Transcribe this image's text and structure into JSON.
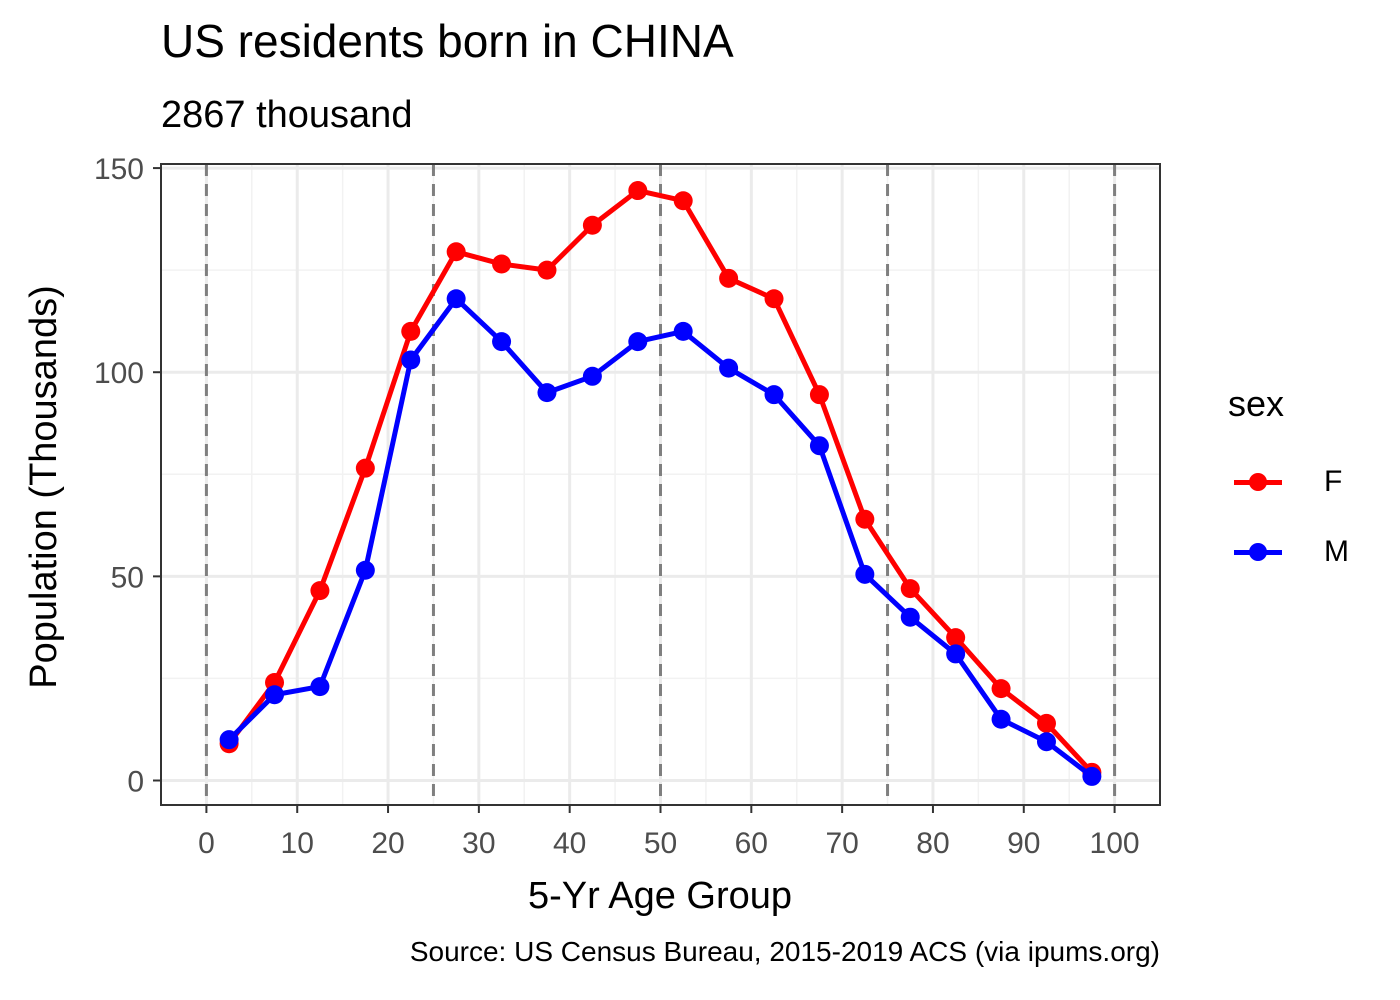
{
  "chart_data": {
    "type": "line",
    "title": "US residents born in CHINA",
    "subtitle": "2867 thousand",
    "caption": "Source: US Census Bureau, 2015-2019 ACS (via ipums.org)",
    "xlabel": "5-Yr Age Group",
    "ylabel": "Population (Thousands)",
    "xlim": [
      -5,
      105
    ],
    "ylim": [
      -6,
      151
    ],
    "x_ticks": [
      0,
      10,
      20,
      30,
      40,
      50,
      60,
      70,
      80,
      90,
      100
    ],
    "y_ticks": [
      0,
      50,
      100,
      150
    ],
    "vlines": [
      0,
      25,
      50,
      75,
      100
    ],
    "grid": true,
    "legend": {
      "title": "sex",
      "position": "right"
    },
    "x": [
      2.5,
      7.5,
      12.5,
      17.5,
      22.5,
      27.5,
      32.5,
      37.5,
      42.5,
      47.5,
      52.5,
      57.5,
      62.5,
      67.5,
      72.5,
      77.5,
      82.5,
      87.5,
      92.5,
      97.5
    ],
    "series": [
      {
        "name": "F",
        "color": "#ff0000",
        "values": [
          9,
          24,
          46.5,
          76.5,
          110,
          129.5,
          126.5,
          125,
          136,
          144.5,
          142,
          123,
          118,
          94.5,
          64,
          47,
          35,
          22.5,
          14,
          2
        ]
      },
      {
        "name": "M",
        "color": "#0000ff",
        "values": [
          10,
          21,
          23,
          51.5,
          103,
          118,
          107.5,
          95,
          99,
          107.5,
          110,
          101,
          94.5,
          82,
          50.5,
          40,
          31,
          15,
          9.5,
          1
        ]
      }
    ]
  }
}
